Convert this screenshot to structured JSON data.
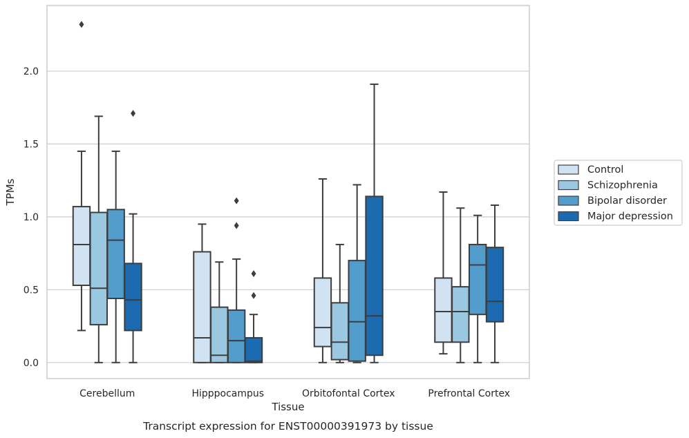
{
  "chart_data": {
    "type": "box",
    "xlabel": "Tissue",
    "ylabel": "TPMs",
    "caption": "Transcript expression for ENST00000391973 by tissue",
    "categories": [
      "Cerebellum",
      "Hipppocampus",
      "Orbitofontal Cortex",
      "Prefrontal Cortex"
    ],
    "ylim": [
      -0.11,
      2.45
    ],
    "yticks": [
      0.0,
      0.5,
      1.0,
      1.5,
      2.0
    ],
    "ytick_labels": [
      "0.0",
      "0.5",
      "1.0",
      "1.5",
      "2.0"
    ],
    "grid": true,
    "legend_position": "right",
    "series": [
      {
        "name": "Control",
        "color": "#d1e2f2",
        "boxes": [
          {
            "whislo": 0.22,
            "q1": 0.53,
            "med": 0.81,
            "q3": 1.07,
            "whishi": 1.45,
            "fliers": [
              2.32
            ]
          },
          {
            "whislo": 0.0,
            "q1": 0.0,
            "med": 0.17,
            "q3": 0.76,
            "whishi": 0.95,
            "fliers": []
          },
          {
            "whislo": 0.0,
            "q1": 0.11,
            "med": 0.24,
            "q3": 0.58,
            "whishi": 1.26,
            "fliers": []
          },
          {
            "whislo": 0.06,
            "q1": 0.14,
            "med": 0.35,
            "q3": 0.58,
            "whishi": 1.17,
            "fliers": []
          }
        ]
      },
      {
        "name": "Schizophrenia",
        "color": "#9ac8e0",
        "boxes": [
          {
            "whislo": 0.0,
            "q1": 0.26,
            "med": 0.51,
            "q3": 1.03,
            "whishi": 1.69,
            "fliers": []
          },
          {
            "whislo": 0.0,
            "q1": 0.0,
            "med": 0.05,
            "q3": 0.38,
            "whishi": 0.69,
            "fliers": []
          },
          {
            "whislo": 0.0,
            "q1": 0.02,
            "med": 0.14,
            "q3": 0.41,
            "whishi": 0.81,
            "fliers": []
          },
          {
            "whislo": 0.0,
            "q1": 0.14,
            "med": 0.35,
            "q3": 0.52,
            "whishi": 1.06,
            "fliers": []
          }
        ]
      },
      {
        "name": "Bipolar disorder",
        "color": "#529dcc",
        "boxes": [
          {
            "whislo": 0.0,
            "q1": 0.44,
            "med": 0.84,
            "q3": 1.05,
            "whishi": 1.45,
            "fliers": []
          },
          {
            "whislo": 0.0,
            "q1": 0.0,
            "med": 0.15,
            "q3": 0.36,
            "whishi": 0.71,
            "fliers": [
              1.11,
              0.94
            ]
          },
          {
            "whislo": 0.0,
            "q1": 0.01,
            "med": 0.28,
            "q3": 0.7,
            "whishi": 1.22,
            "fliers": []
          },
          {
            "whislo": 0.0,
            "q1": 0.33,
            "med": 0.67,
            "q3": 0.81,
            "whishi": 1.01,
            "fliers": []
          }
        ]
      },
      {
        "name": "Major depression",
        "color": "#1c6aaf",
        "boxes": [
          {
            "whislo": 0.0,
            "q1": 0.22,
            "med": 0.43,
            "q3": 0.68,
            "whishi": 1.02,
            "fliers": [
              1.71
            ]
          },
          {
            "whislo": 0.0,
            "q1": 0.0,
            "med": 0.01,
            "q3": 0.17,
            "whishi": 0.33,
            "fliers": [
              0.61,
              0.46
            ]
          },
          {
            "whislo": 0.0,
            "q1": 0.05,
            "med": 0.32,
            "q3": 1.14,
            "whishi": 1.91,
            "fliers": []
          },
          {
            "whislo": 0.0,
            "q1": 0.28,
            "med": 0.42,
            "q3": 0.79,
            "whishi": 1.08,
            "fliers": []
          }
        ]
      }
    ]
  }
}
